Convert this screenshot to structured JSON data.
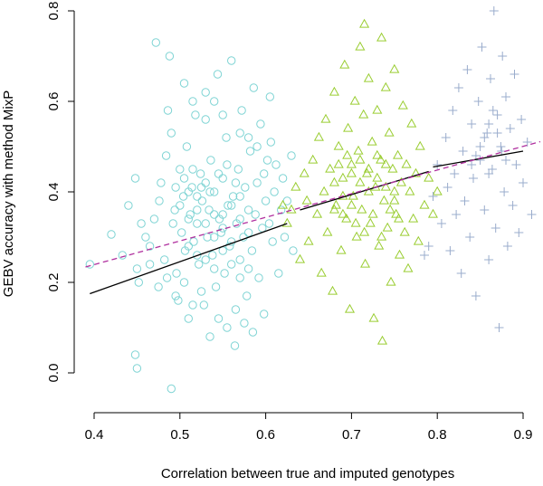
{
  "chart_data": {
    "type": "scatter",
    "title": "",
    "xlabel": "Correlation between true and imputed genotypes",
    "ylabel": "GEBV accuracy with method MixP",
    "xlim": [
      0.39,
      0.92
    ],
    "ylim": [
      -0.04,
      0.81
    ],
    "x_ticks": [
      "0.4",
      "0.5",
      "0.6",
      "0.7",
      "0.8",
      "0.9"
    ],
    "x_tick_values": [
      0.4,
      0.5,
      0.6,
      0.7,
      0.8,
      0.9
    ],
    "y_ticks": [
      "0.0",
      "0.2",
      "0.4",
      "0.6",
      "0.8"
    ],
    "y_tick_values": [
      0.0,
      0.2,
      0.4,
      0.6,
      0.8
    ],
    "grid": false,
    "legend": "none",
    "series": [
      {
        "marker": "circle",
        "color": "#7fd4d4",
        "points": [
          [
            0.395,
            0.24
          ],
          [
            0.42,
            0.306
          ],
          [
            0.433,
            0.26
          ],
          [
            0.44,
            0.37
          ],
          [
            0.448,
            0.43
          ],
          [
            0.45,
            0.23
          ],
          [
            0.452,
            0.2
          ],
          [
            0.448,
            0.04
          ],
          [
            0.45,
            0.01
          ],
          [
            0.46,
            0.3
          ],
          [
            0.465,
            0.28
          ],
          [
            0.47,
            0.34
          ],
          [
            0.472,
            0.73
          ],
          [
            0.476,
            0.38
          ],
          [
            0.478,
            0.42
          ],
          [
            0.482,
            0.25
          ],
          [
            0.484,
            0.48
          ],
          [
            0.486,
            0.58
          ],
          [
            0.488,
            0.7
          ],
          [
            0.49,
            0.53
          ],
          [
            0.49,
            -0.035
          ],
          [
            0.492,
            0.33
          ],
          [
            0.494,
            0.36
          ],
          [
            0.496,
            0.22
          ],
          [
            0.498,
            0.16
          ],
          [
            0.5,
            0.45
          ],
          [
            0.502,
            0.31
          ],
          [
            0.504,
            0.39
          ],
          [
            0.506,
            0.27
          ],
          [
            0.508,
            0.5
          ],
          [
            0.51,
            0.12
          ],
          [
            0.512,
            0.35
          ],
          [
            0.514,
            0.41
          ],
          [
            0.516,
            0.29
          ],
          [
            0.518,
            0.57
          ],
          [
            0.52,
            0.33
          ],
          [
            0.522,
            0.24
          ],
          [
            0.524,
            0.44
          ],
          [
            0.526,
            0.38
          ],
          [
            0.528,
            0.15
          ],
          [
            0.53,
            0.62
          ],
          [
            0.532,
            0.3
          ],
          [
            0.534,
            0.36
          ],
          [
            0.536,
            0.47
          ],
          [
            0.538,
            0.26
          ],
          [
            0.54,
            0.4
          ],
          [
            0.542,
            0.19
          ],
          [
            0.544,
            0.66
          ],
          [
            0.546,
            0.34
          ],
          [
            0.548,
            0.31
          ],
          [
            0.55,
            0.43
          ],
          [
            0.552,
            0.22
          ],
          [
            0.554,
            0.52
          ],
          [
            0.556,
            0.37
          ],
          [
            0.558,
            0.28
          ],
          [
            0.56,
            0.69
          ],
          [
            0.562,
            0.39
          ],
          [
            0.564,
            0.06
          ],
          [
            0.566,
            0.33
          ],
          [
            0.568,
            0.45
          ],
          [
            0.57,
            0.25
          ],
          [
            0.572,
            0.58
          ],
          [
            0.574,
            0.3
          ],
          [
            0.576,
            0.41
          ],
          [
            0.578,
            0.17
          ],
          [
            0.58,
            0.36
          ],
          [
            0.582,
            0.49
          ],
          [
            0.584,
            0.27
          ],
          [
            0.586,
            0.63
          ],
          [
            0.588,
            0.35
          ],
          [
            0.59,
            0.42
          ],
          [
            0.592,
            0.21
          ],
          [
            0.594,
            0.55
          ],
          [
            0.596,
            0.32
          ],
          [
            0.598,
            0.44
          ],
          [
            0.6,
            0.38
          ],
          [
            0.602,
            0.47
          ],
          [
            0.604,
            0.33
          ],
          [
            0.606,
            0.51
          ],
          [
            0.608,
            0.29
          ],
          [
            0.61,
            0.4
          ],
          [
            0.612,
            0.46
          ],
          [
            0.615,
            0.22
          ],
          [
            0.618,
            0.36
          ],
          [
            0.62,
            0.43
          ],
          [
            0.622,
            0.3
          ],
          [
            0.625,
            0.38
          ],
          [
            0.63,
            0.48
          ],
          [
            0.632,
            0.27
          ],
          [
            0.605,
            0.61
          ],
          [
            0.598,
            0.13
          ],
          [
            0.585,
            0.09
          ],
          [
            0.575,
            0.11
          ],
          [
            0.565,
            0.14
          ],
          [
            0.555,
            0.1
          ],
          [
            0.545,
            0.12
          ],
          [
            0.535,
            0.08
          ],
          [
            0.525,
            0.18
          ],
          [
            0.515,
            0.15
          ],
          [
            0.505,
            0.2
          ],
          [
            0.495,
            0.17
          ],
          [
            0.485,
            0.21
          ],
          [
            0.475,
            0.19
          ],
          [
            0.465,
            0.24
          ],
          [
            0.455,
            0.33
          ],
          [
            0.505,
            0.64
          ],
          [
            0.515,
            0.6
          ],
          [
            0.53,
            0.56
          ],
          [
            0.54,
            0.6
          ],
          [
            0.55,
            0.57
          ],
          [
            0.57,
            0.53
          ],
          [
            0.58,
            0.52
          ],
          [
            0.59,
            0.5
          ],
          [
            0.51,
            0.4
          ],
          [
            0.52,
            0.39
          ],
          [
            0.53,
            0.42
          ],
          [
            0.54,
            0.35
          ],
          [
            0.55,
            0.32
          ],
          [
            0.56,
            0.29
          ],
          [
            0.57,
            0.34
          ],
          [
            0.58,
            0.31
          ],
          [
            0.51,
            0.28
          ],
          [
            0.52,
            0.26
          ],
          [
            0.53,
            0.25
          ],
          [
            0.54,
            0.23
          ],
          [
            0.55,
            0.27
          ],
          [
            0.56,
            0.24
          ],
          [
            0.57,
            0.21
          ],
          [
            0.58,
            0.23
          ],
          [
            0.5,
            0.37
          ],
          [
            0.51,
            0.34
          ],
          [
            0.52,
            0.36
          ],
          [
            0.53,
            0.33
          ],
          [
            0.54,
            0.3
          ],
          [
            0.55,
            0.35
          ],
          [
            0.56,
            0.37
          ],
          [
            0.57,
            0.39
          ],
          [
            0.495,
            0.41
          ],
          [
            0.505,
            0.43
          ],
          [
            0.515,
            0.45
          ],
          [
            0.525,
            0.41
          ],
          [
            0.535,
            0.4
          ],
          [
            0.545,
            0.44
          ],
          [
            0.555,
            0.46
          ],
          [
            0.565,
            0.42
          ]
        ]
      },
      {
        "marker": "triangle",
        "color": "#9acd32",
        "points": [
          [
            0.62,
            0.37
          ],
          [
            0.625,
            0.33
          ],
          [
            0.63,
            0.36
          ],
          [
            0.635,
            0.41
          ],
          [
            0.64,
            0.25
          ],
          [
            0.645,
            0.44
          ],
          [
            0.648,
            0.38
          ],
          [
            0.65,
            0.29
          ],
          [
            0.655,
            0.47
          ],
          [
            0.66,
            0.35
          ],
          [
            0.662,
            0.52
          ],
          [
            0.665,
            0.22
          ],
          [
            0.668,
            0.4
          ],
          [
            0.67,
            0.56
          ],
          [
            0.672,
            0.31
          ],
          [
            0.675,
            0.45
          ],
          [
            0.678,
            0.18
          ],
          [
            0.68,
            0.62
          ],
          [
            0.682,
            0.37
          ],
          [
            0.685,
            0.5
          ],
          [
            0.688,
            0.27
          ],
          [
            0.69,
            0.43
          ],
          [
            0.692,
            0.68
          ],
          [
            0.694,
            0.34
          ],
          [
            0.696,
            0.54
          ],
          [
            0.698,
            0.14
          ],
          [
            0.7,
            0.46
          ],
          [
            0.702,
            0.39
          ],
          [
            0.704,
            0.6
          ],
          [
            0.706,
            0.3
          ],
          [
            0.708,
            0.49
          ],
          [
            0.71,
            0.72
          ],
          [
            0.712,
            0.36
          ],
          [
            0.714,
            0.57
          ],
          [
            0.716,
            0.24
          ],
          [
            0.718,
            0.44
          ],
          [
            0.72,
            0.65
          ],
          [
            0.722,
            0.33
          ],
          [
            0.724,
            0.51
          ],
          [
            0.726,
            0.12
          ],
          [
            0.728,
            0.41
          ],
          [
            0.73,
            0.58
          ],
          [
            0.732,
            0.28
          ],
          [
            0.734,
            0.47
          ],
          [
            0.736,
            0.07
          ],
          [
            0.738,
            0.38
          ],
          [
            0.74,
            0.63
          ],
          [
            0.742,
            0.32
          ],
          [
            0.744,
            0.53
          ],
          [
            0.746,
            0.2
          ],
          [
            0.748,
            0.45
          ],
          [
            0.75,
            0.67
          ],
          [
            0.752,
            0.35
          ],
          [
            0.754,
            0.48
          ],
          [
            0.756,
            0.26
          ],
          [
            0.758,
            0.42
          ],
          [
            0.76,
            0.59
          ],
          [
            0.762,
            0.31
          ],
          [
            0.764,
            0.46
          ],
          [
            0.766,
            0.23
          ],
          [
            0.768,
            0.4
          ],
          [
            0.77,
            0.55
          ],
          [
            0.772,
            0.34
          ],
          [
            0.775,
            0.44
          ],
          [
            0.778,
            0.29
          ],
          [
            0.78,
            0.5
          ],
          [
            0.785,
            0.37
          ],
          [
            0.79,
            0.43
          ],
          [
            0.795,
            0.35
          ],
          [
            0.8,
            0.4
          ],
          [
            0.715,
            0.77
          ],
          [
            0.735,
            0.74
          ],
          [
            0.71,
            0.42
          ],
          [
            0.72,
            0.4
          ],
          [
            0.73,
            0.43
          ],
          [
            0.74,
            0.41
          ],
          [
            0.7,
            0.44
          ],
          [
            0.69,
            0.39
          ],
          [
            0.68,
            0.42
          ],
          [
            0.75,
            0.4
          ],
          [
            0.71,
            0.47
          ],
          [
            0.72,
            0.45
          ],
          [
            0.73,
            0.48
          ],
          [
            0.74,
            0.46
          ],
          [
            0.7,
            0.37
          ],
          [
            0.69,
            0.35
          ],
          [
            0.68,
            0.36
          ],
          [
            0.75,
            0.38
          ],
          [
            0.705,
            0.33
          ],
          [
            0.715,
            0.31
          ],
          [
            0.725,
            0.35
          ],
          [
            0.735,
            0.3
          ],
          [
            0.745,
            0.36
          ],
          [
            0.755,
            0.34
          ],
          [
            0.695,
            0.48
          ],
          [
            0.685,
            0.46
          ]
        ]
      },
      {
        "marker": "plus",
        "color": "#9aaccc",
        "points": [
          [
            0.795,
            0.39
          ],
          [
            0.8,
            0.46
          ],
          [
            0.805,
            0.33
          ],
          [
            0.81,
            0.52
          ],
          [
            0.812,
            0.41
          ],
          [
            0.815,
            0.27
          ],
          [
            0.818,
            0.58
          ],
          [
            0.82,
            0.44
          ],
          [
            0.822,
            0.35
          ],
          [
            0.825,
            0.63
          ],
          [
            0.828,
            0.22
          ],
          [
            0.83,
            0.49
          ],
          [
            0.832,
            0.38
          ],
          [
            0.835,
            0.67
          ],
          [
            0.838,
            0.3
          ],
          [
            0.84,
            0.55
          ],
          [
            0.842,
            0.43
          ],
          [
            0.845,
            0.17
          ],
          [
            0.848,
            0.6
          ],
          [
            0.85,
            0.47
          ],
          [
            0.852,
            0.72
          ],
          [
            0.855,
            0.36
          ],
          [
            0.858,
            0.53
          ],
          [
            0.86,
            0.25
          ],
          [
            0.862,
            0.65
          ],
          [
            0.864,
            0.45
          ],
          [
            0.866,
            0.8
          ],
          [
            0.868,
            0.32
          ],
          [
            0.87,
            0.57
          ],
          [
            0.872,
            0.1
          ],
          [
            0.874,
            0.5
          ],
          [
            0.876,
            0.7
          ],
          [
            0.878,
            0.4
          ],
          [
            0.88,
            0.61
          ],
          [
            0.882,
            0.28
          ],
          [
            0.885,
            0.54
          ],
          [
            0.888,
            0.37
          ],
          [
            0.89,
            0.66
          ],
          [
            0.892,
            0.46
          ],
          [
            0.895,
            0.31
          ],
          [
            0.898,
            0.56
          ],
          [
            0.9,
            0.42
          ],
          [
            0.905,
            0.51
          ],
          [
            0.91,
            0.35
          ],
          [
            0.79,
            0.28
          ],
          [
            0.785,
            0.26
          ],
          [
            0.86,
            0.55
          ],
          [
            0.855,
            0.52
          ],
          [
            0.865,
            0.58
          ],
          [
            0.85,
            0.5
          ],
          [
            0.87,
            0.53
          ],
          [
            0.845,
            0.48
          ],
          [
            0.875,
            0.49
          ],
          [
            0.84,
            0.46
          ],
          [
            0.88,
            0.47
          ],
          [
            0.86,
            0.44
          ]
        ]
      }
    ],
    "lines": [
      {
        "style": "solid",
        "color": "#000000",
        "x": [
          0.395,
          0.625
        ],
        "y": [
          0.175,
          0.33
        ]
      },
      {
        "style": "solid",
        "color": "#000000",
        "x": [
          0.64,
          0.79
        ],
        "y": [
          0.36,
          0.445
        ]
      },
      {
        "style": "solid",
        "color": "#000000",
        "x": [
          0.795,
          0.9
        ],
        "y": [
          0.455,
          0.49
        ]
      },
      {
        "style": "dashed",
        "color": "#b0309f",
        "x": [
          0.39,
          0.92
        ],
        "y": [
          0.234,
          0.511
        ]
      }
    ]
  }
}
